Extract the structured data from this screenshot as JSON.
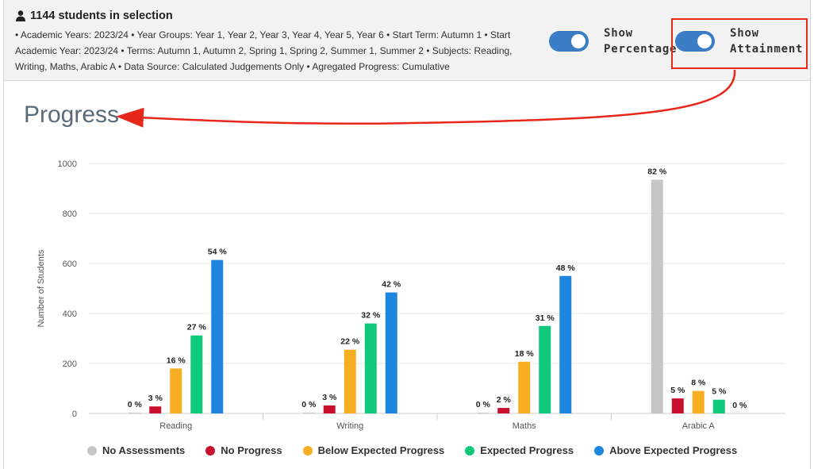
{
  "header": {
    "selection_title": "1144 students in selection",
    "filters_text": "• Academic Years: 2023/24 • Year Groups: Year 1, Year 2, Year 3, Year 4, Year 5, Year 6 • Start Term: Autumn 1 • Start Academic Year: 2023/24 • Terms: Autumn 1, Autumn 2, Spring 1, Spring 2, Summer 1, Summer 2 • Subjects: Reading, Writing, Maths, Arabic A • Data Source: Calculated Judgements Only • Agregated Progress: Cumulative",
    "toggles": [
      {
        "label_line1": "Show",
        "label_line2": "Percentage",
        "on": true
      },
      {
        "label_line1": "Show",
        "label_line2": "Attainment",
        "on": true
      }
    ]
  },
  "section_title": "Progress",
  "colors": {
    "no_assessments": "#c6c6c6",
    "no_progress": "#c8102e",
    "below_expected": "#f7ae23",
    "expected": "#10c97a",
    "above_expected": "#1f86df",
    "annotation": "#e8271b",
    "toggle": "#3b7dc4"
  },
  "chart_data": {
    "type": "bar",
    "title": "",
    "ylabel": "Number of Students",
    "xlabel": "",
    "ylim": [
      0,
      1000
    ],
    "yticks": [
      0,
      200,
      400,
      600,
      800,
      1000
    ],
    "grid": true,
    "legend_position": "bottom",
    "categories": [
      "Reading",
      "Writing",
      "Maths",
      "Arabic A"
    ],
    "series": [
      {
        "name": "No Assessments",
        "color_key": "no_assessments",
        "values": [
          3,
          3,
          3,
          935
        ],
        "labels": [
          "0 %",
          "0 %",
          "0 %",
          "82 %"
        ]
      },
      {
        "name": "No Progress",
        "color_key": "no_progress",
        "values": [
          28,
          32,
          22,
          60
        ],
        "labels": [
          "3 %",
          "3 %",
          "2 %",
          "5 %"
        ]
      },
      {
        "name": "Below Expected Progress",
        "color_key": "below_expected",
        "values": [
          180,
          255,
          207,
          90
        ],
        "labels": [
          "16 %",
          "22 %",
          "18 %",
          "8 %"
        ]
      },
      {
        "name": "Expected Progress",
        "color_key": "expected",
        "values": [
          312,
          360,
          350,
          55
        ],
        "labels": [
          "27 %",
          "32 %",
          "31 %",
          "5 %"
        ]
      },
      {
        "name": "Above Expected Progress",
        "color_key": "above_expected",
        "values": [
          614,
          484,
          550,
          0
        ],
        "labels": [
          "54 %",
          "42 %",
          "48 %",
          "0 %"
        ]
      }
    ]
  }
}
